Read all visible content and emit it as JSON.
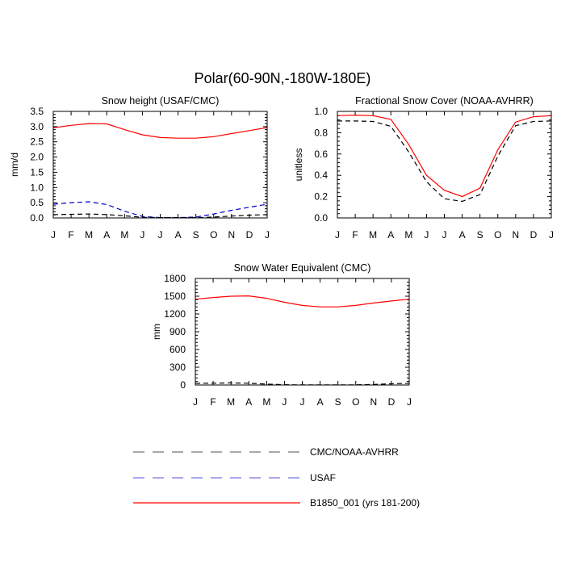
{
  "figure": {
    "title": "Polar(60-90N,-180W-180E)"
  },
  "legend": [
    {
      "label": "CMC/NOAA-AVHRR",
      "color": "#000000",
      "dash": "dashed"
    },
    {
      "label": "USAF",
      "color": "#0000cc",
      "dash": "dashed"
    },
    {
      "label": "B1850_001 (yrs 181-200)",
      "color": "#ff0000",
      "dash": "solid"
    }
  ],
  "chart_data": [
    {
      "type": "line",
      "title": "Snow height (USAF/CMC)",
      "xlabel": "",
      "ylabel": "mm/d",
      "categories": [
        "J",
        "F",
        "M",
        "A",
        "M",
        "J",
        "J",
        "A",
        "S",
        "O",
        "N",
        "D",
        "J"
      ],
      "yticks": [
        0.0,
        0.5,
        1.0,
        1.5,
        2.0,
        2.5,
        3.0,
        3.5
      ],
      "ytick_labels": [
        "0.0",
        "0.5",
        "1.0",
        "1.5",
        "2.0",
        "2.5",
        "3.0",
        "3.5"
      ],
      "ylim": [
        0,
        3.5
      ],
      "series": [
        {
          "name": "B1850_001 (yrs 181-200)",
          "color": "#ff0000",
          "dash": "solid",
          "values": [
            2.96,
            3.04,
            3.1,
            3.09,
            2.9,
            2.73,
            2.64,
            2.62,
            2.62,
            2.67,
            2.77,
            2.87,
            2.97
          ]
        },
        {
          "name": "USAF",
          "color": "#0000cc",
          "dash": "dashed",
          "values": [
            0.45,
            0.5,
            0.53,
            0.44,
            0.22,
            0.05,
            0.01,
            0.01,
            0.03,
            0.13,
            0.25,
            0.35,
            0.45
          ]
        },
        {
          "name": "CMC/NOAA-AVHRR",
          "color": "#000000",
          "dash": "dashed",
          "values": [
            0.11,
            0.12,
            0.13,
            0.11,
            0.07,
            0.02,
            0.01,
            0.01,
            0.01,
            0.03,
            0.06,
            0.09,
            0.11
          ]
        }
      ]
    },
    {
      "type": "line",
      "title": "Fractional Snow Cover (NOAA-AVHRR)",
      "xlabel": "",
      "ylabel": "unitless",
      "categories": [
        "J",
        "F",
        "M",
        "A",
        "M",
        "J",
        "J",
        "A",
        "S",
        "O",
        "N",
        "D",
        "J"
      ],
      "yticks": [
        0.0,
        0.2,
        0.4,
        0.6,
        0.8,
        1.0
      ],
      "ytick_labels": [
        "0.0",
        "0.2",
        "0.4",
        "0.6",
        "0.8",
        "1.0"
      ],
      "ylim": [
        0,
        1.0
      ],
      "series": [
        {
          "name": "B1850_001 (yrs 181-200)",
          "color": "#ff0000",
          "dash": "solid",
          "values": [
            0.96,
            0.965,
            0.96,
            0.925,
            0.69,
            0.4,
            0.26,
            0.2,
            0.28,
            0.64,
            0.9,
            0.95,
            0.96
          ]
        },
        {
          "name": "CMC/NOAA-AVHRR",
          "color": "#000000",
          "dash": "dashed",
          "values": [
            0.91,
            0.91,
            0.905,
            0.86,
            0.62,
            0.34,
            0.18,
            0.155,
            0.22,
            0.58,
            0.865,
            0.905,
            0.91
          ]
        }
      ]
    },
    {
      "type": "line",
      "title": "Snow Water Equivalent (CMC)",
      "xlabel": "",
      "ylabel": "mm",
      "categories": [
        "J",
        "F",
        "M",
        "A",
        "M",
        "J",
        "J",
        "A",
        "S",
        "O",
        "N",
        "D",
        "J"
      ],
      "yticks": [
        0,
        300,
        600,
        900,
        1200,
        1500,
        1800
      ],
      "ytick_labels": [
        "0",
        "300",
        "600",
        "900",
        "1200",
        "1500",
        "1800"
      ],
      "ylim": [
        0,
        1800
      ],
      "series": [
        {
          "name": "B1850_001 (yrs 181-200)",
          "color": "#ff0000",
          "dash": "solid",
          "values": [
            1450,
            1478,
            1500,
            1505,
            1465,
            1398,
            1345,
            1320,
            1320,
            1345,
            1385,
            1420,
            1450
          ]
        },
        {
          "name": "CMC/NOAA-AVHRR",
          "color": "#000000",
          "dash": "dashed",
          "values": [
            28,
            32,
            35,
            30,
            15,
            5,
            2,
            1,
            1,
            3,
            10,
            20,
            28
          ]
        }
      ]
    }
  ]
}
